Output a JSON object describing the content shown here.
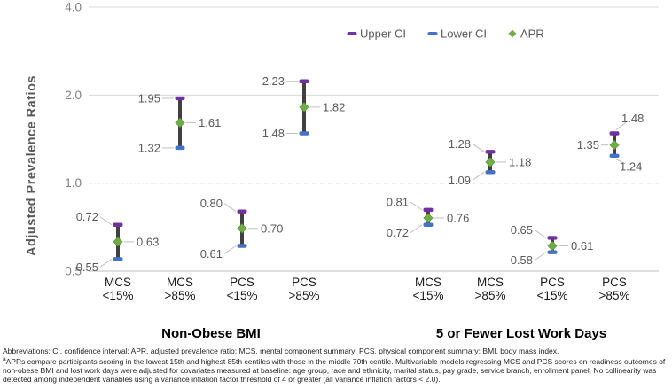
{
  "chart_data": {
    "type": "scatter",
    "subtype": "dot-plot-with-error-bars",
    "title": "",
    "xlabel": "",
    "ylabel": "Adjusted Prevalence Ratios",
    "yscale": "log2",
    "ylim": [
      0.5,
      4.0
    ],
    "yticks": [
      0.5,
      1.0,
      2.0,
      4.0
    ],
    "ytick_labels": [
      "0.5",
      "1.0",
      "2.0",
      "4.0"
    ],
    "reference_line": 1.0,
    "grid": true,
    "legend_position": "top",
    "groups": [
      {
        "label": "Non-Obese BMI",
        "categories": [
          {
            "label": [
              "MCS",
              "<15%"
            ],
            "upper_ci": 0.72,
            "apr": 0.63,
            "lower_ci": 0.55,
            "label_side": "left"
          },
          {
            "label": [
              "MCS",
              ">85%"
            ],
            "upper_ci": 1.95,
            "apr": 1.61,
            "lower_ci": 1.32,
            "label_side": "left"
          },
          {
            "label": [
              "PCS",
              "<15%"
            ],
            "upper_ci": 0.8,
            "apr": 0.7,
            "lower_ci": 0.61,
            "label_side": "left"
          },
          {
            "label": [
              "PCS",
              ">85%"
            ],
            "upper_ci": 2.23,
            "apr": 1.82,
            "lower_ci": 1.48,
            "label_side": "left"
          }
        ]
      },
      {
        "label": "5 or Fewer Lost Work Days",
        "categories": [
          {
            "label": [
              "MCS",
              "<15%"
            ],
            "upper_ci": 0.81,
            "apr": 0.76,
            "lower_ci": 0.72,
            "label_side": "left"
          },
          {
            "label": [
              "MCS",
              ">85%"
            ],
            "upper_ci": 1.28,
            "apr": 1.18,
            "lower_ci": 1.09,
            "label_side": "left"
          },
          {
            "label": [
              "PCS",
              "<15%"
            ],
            "upper_ci": 0.65,
            "apr": 0.61,
            "lower_ci": 0.58,
            "label_side": "left"
          },
          {
            "label": [
              "PCS",
              ">85%"
            ],
            "upper_ci": 1.48,
            "apr": 1.35,
            "lower_ci": 1.24,
            "label_side": "right"
          }
        ]
      }
    ]
  },
  "legend": {
    "items": [
      {
        "label": "Upper CI",
        "marker": "dash-icon",
        "color": "#7030A0"
      },
      {
        "label": "Lower CI",
        "marker": "dash-icon",
        "color": "#4472C4"
      },
      {
        "label": "APR",
        "marker": "diamond-icon",
        "color": "#70AD47"
      }
    ]
  },
  "colors": {
    "upper_ci": "#7030A0",
    "lower_ci": "#4472C4",
    "apr": "#70AD47",
    "apr_edge": "#5a8f3c",
    "error_bar": "#404040",
    "gridline": "#D9D9D9",
    "axis_line": "#BFBFBF",
    "reference_line": "#7F7F7F",
    "data_label": "#595959",
    "leader_line": "#BFBFBF",
    "tick_label": "#808080",
    "axis_title": "#595959",
    "category_label": "#1a1a1a",
    "group_label": "#000000",
    "legend_text": "#595959"
  },
  "footnote": {
    "abbreviations": "Abbreviations: CI, confidence interval; APR, adjusted prevalence ratio; MCS, mental component summary; PCS, physical component summary; BMI, body mass index.",
    "note_marker": "a",
    "note_text": "APRs compare participants scoring in the lowest 15th and highest 85th centiles with those in the middle 70th centile. Multivariable models regressing MCS and PCS scores on readiness outcomes of non-obese BMI and lost work days were adjusted for covariates measured at baseline: age group, race and ethnicity, marital status, pay grade, service branch, enrollment panel. No collinearity was detected among independent variables using a variance inflation factor threshold of 4 or greater (all variance inflation factors < 2.0)."
  }
}
